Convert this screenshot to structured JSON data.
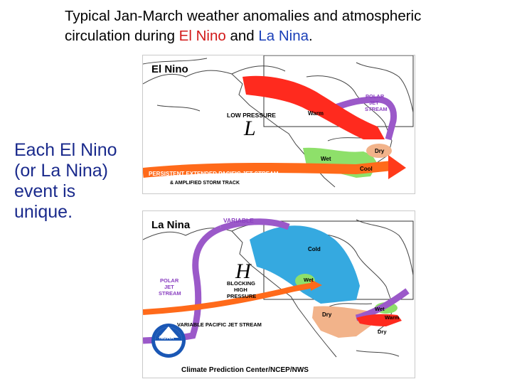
{
  "title": {
    "line1": "Typical Jan-March weather anomalies and atmospheric",
    "line2_prefix": "circulation during ",
    "el_nino": "El Nino",
    "and": " and ",
    "la_nina": "La Nina",
    "period": "."
  },
  "side_text": [
    "Each El Nino",
    "(or La Nina)",
    "event is",
    "unique."
  ],
  "colors": {
    "warm": "#ff2a1e",
    "wet": "#8ee06a",
    "dry": "#f2b38a",
    "cold": "#35a9e0",
    "jet_orange": "#ff6a1a",
    "polar_jet": "#9b59c9",
    "blue_text": "#1a3fb8",
    "red_text": "#d21a1a"
  },
  "el_nino_map": {
    "panel_title": "El Nino",
    "polar_jet": "POLAR\nJET\nSTREAM",
    "low_pressure": "LOW PRESSURE",
    "low_symbol": "L",
    "warm": "Warm",
    "wet": "Wet",
    "dry": "Dry",
    "cool": "Cool",
    "jet_line1": "PERSISTENT EXTENDED PACIFIC JET STREAM",
    "jet_line2": "& AMPLIFIED STORM TRACK"
  },
  "la_nina_map": {
    "panel_title": "La Nina",
    "variable": "VARIABLE",
    "polar_jet": "POLAR\nJET\nSTREAM",
    "high_symbol": "H",
    "blocking": "BLOCKING\nHIGH\nPRESSURE",
    "cold": "Cold",
    "wet_nw": "Wet",
    "dry": "Dry",
    "wet_e": "Wet",
    "warm": "Warm",
    "dry_s": "Dry",
    "jet_stream": "VARIABLE PACIFIC JET STREAM",
    "noaa": "NOAA",
    "credit": "Climate Prediction Center/NCEP/NWS"
  }
}
